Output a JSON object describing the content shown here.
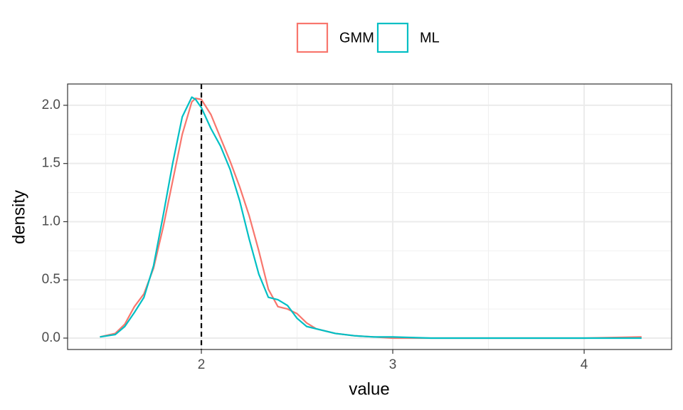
{
  "chart_data": {
    "type": "line",
    "x_label": "value",
    "y_label": "density",
    "x": [
      1.47,
      1.55,
      1.6,
      1.65,
      1.7,
      1.75,
      1.8,
      1.85,
      1.9,
      1.95,
      1.97,
      2.0,
      2.05,
      2.1,
      2.15,
      2.2,
      2.25,
      2.3,
      2.35,
      2.4,
      2.45,
      2.5,
      2.55,
      2.6,
      2.7,
      2.8,
      2.9,
      3.0,
      3.2,
      3.5,
      4.0,
      4.3
    ],
    "series": [
      {
        "name": "GMM",
        "color": "#F8766D",
        "values": [
          0.01,
          0.04,
          0.12,
          0.27,
          0.38,
          0.6,
          0.95,
          1.35,
          1.75,
          2.03,
          2.06,
          2.05,
          1.92,
          1.72,
          1.52,
          1.3,
          1.05,
          0.75,
          0.42,
          0.27,
          0.25,
          0.21,
          0.13,
          0.08,
          0.04,
          0.02,
          0.01,
          0.0,
          0.0,
          0.0,
          0.0,
          0.01
        ]
      },
      {
        "name": "ML",
        "color": "#00BFC4",
        "values": [
          0.01,
          0.03,
          0.1,
          0.22,
          0.35,
          0.62,
          1.05,
          1.5,
          1.9,
          2.07,
          2.05,
          1.98,
          1.8,
          1.65,
          1.45,
          1.18,
          0.85,
          0.55,
          0.35,
          0.33,
          0.28,
          0.17,
          0.1,
          0.08,
          0.04,
          0.02,
          0.01,
          0.01,
          0.0,
          0.0,
          0.0,
          0.0
        ]
      }
    ],
    "xlim": [
      1.301,
      4.457
    ],
    "ylim": [
      -0.098,
      2.183
    ],
    "xticks": [
      2,
      3,
      4
    ],
    "yticks": [
      {
        "value": 0,
        "label": "0.0"
      },
      {
        "value": 0.5,
        "label": "0.5"
      },
      {
        "value": 1,
        "label": "1.0"
      },
      {
        "value": 1.5,
        "label": "1.5"
      },
      {
        "value": 2,
        "label": "2.0"
      }
    ],
    "xminor": [
      1.5,
      2.5,
      3.5
    ],
    "yminor": [
      0.25,
      0.75,
      1.25,
      1.75
    ],
    "vline": 2,
    "grid": true,
    "legend_position": "top"
  }
}
